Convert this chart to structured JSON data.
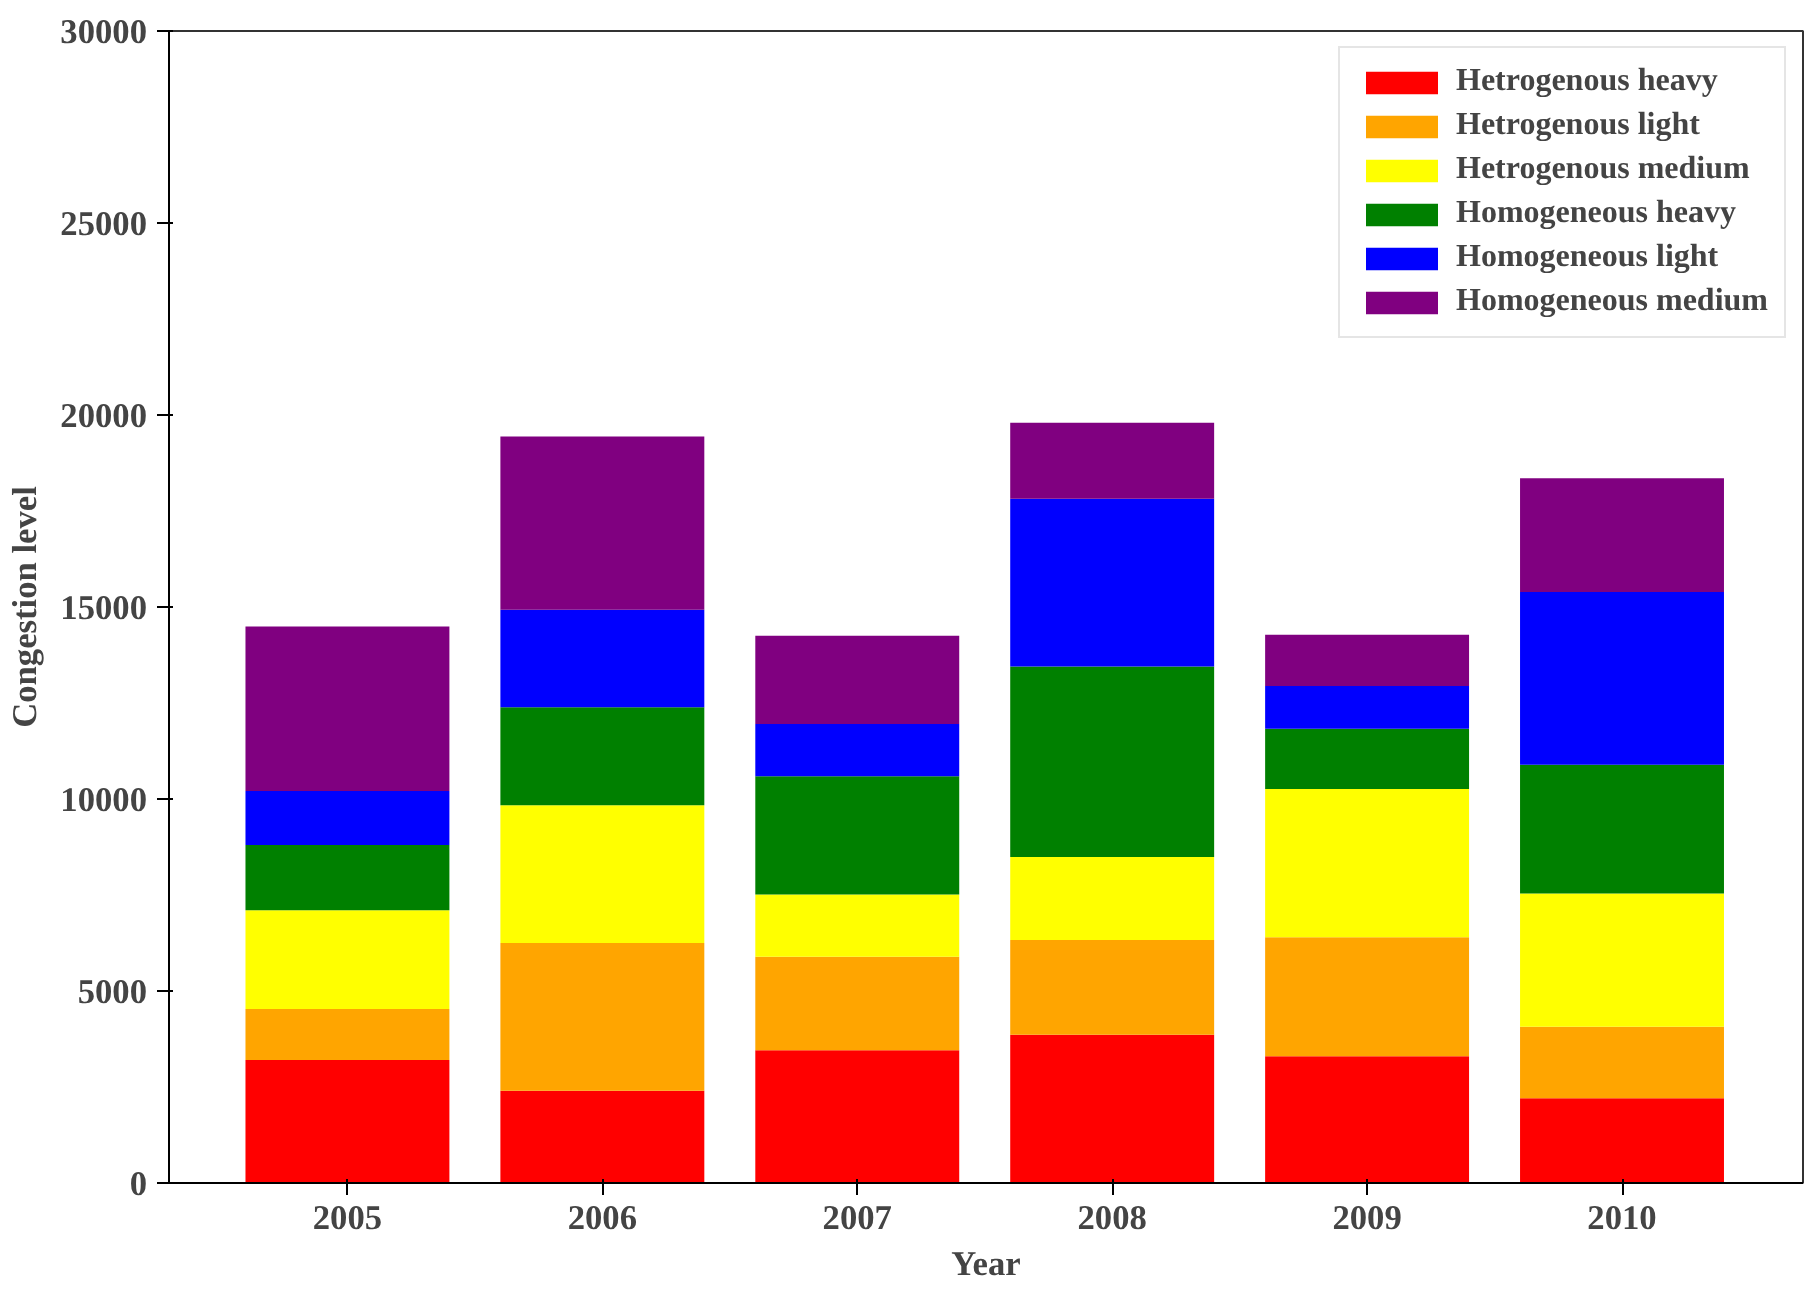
{
  "chart_data": {
    "type": "bar",
    "stacked": true,
    "xlabel": "Year",
    "ylabel": "Congestion level",
    "categories": [
      "2005",
      "2006",
      "2007",
      "2008",
      "2009",
      "2010"
    ],
    "series": [
      {
        "name": "Hetrogenous heavy",
        "color": "#ff0000",
        "values": [
          3200,
          2400,
          3460,
          3860,
          3300,
          2210
        ]
      },
      {
        "name": "Hetrogenous light",
        "color": "#ffa500",
        "values": [
          1330,
          3850,
          2430,
          2470,
          3100,
          1860
        ]
      },
      {
        "name": "Hetrogenous medium",
        "color": "#ffff00",
        "values": [
          2570,
          3590,
          1620,
          2160,
          3860,
          3470
        ]
      },
      {
        "name": "Homogeneous heavy",
        "color": "#008000",
        "values": [
          1700,
          2550,
          3080,
          4960,
          1570,
          3350
        ]
      },
      {
        "name": "Homogeneous light",
        "color": "#0000ff",
        "values": [
          1410,
          2540,
          1360,
          4370,
          1110,
          4500
        ]
      },
      {
        "name": "Homogeneous medium",
        "color": "#800080",
        "values": [
          4280,
          4510,
          2300,
          1980,
          1340,
          2960
        ]
      }
    ],
    "ylim": [
      0,
      30000
    ],
    "yticks": [
      0,
      5000,
      10000,
      15000,
      20000,
      25000,
      30000
    ],
    "grid": false,
    "legend": "top right"
  }
}
